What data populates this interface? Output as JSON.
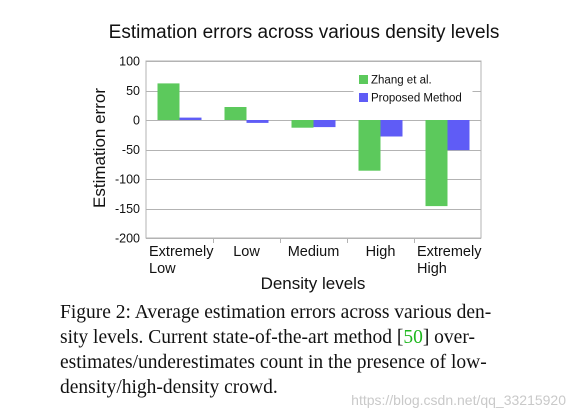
{
  "chart_data": {
    "type": "bar",
    "title": "Estimation errors across various density levels",
    "xlabel": "Density levels",
    "ylabel": "Estimation error",
    "categories": [
      [
        "Extremely",
        "Low"
      ],
      [
        "Low"
      ],
      [
        "Medium"
      ],
      [
        "High"
      ],
      [
        "Extremely",
        "High"
      ]
    ],
    "series": [
      {
        "name": "Zhang et al.",
        "color": "#5cc95c",
        "values": [
          62,
          22,
          -13,
          -86,
          -146
        ]
      },
      {
        "name": "Proposed Method",
        "color": "#5f5cf6",
        "values": [
          4,
          -5,
          -12,
          -28,
          -51
        ]
      }
    ],
    "ylim": [
      -200,
      100
    ],
    "yticks": [
      100,
      50,
      0,
      -50,
      -100,
      -150,
      -200
    ],
    "grid": true,
    "legend_position": "top-right"
  },
  "caption": {
    "lines": [
      {
        "text": "Figure 2:  Average estimation errors across various den-"
      },
      {
        "text": "sity levels.  Current state-of-the-art method [",
        "ref": "50",
        "after": "] over-"
      },
      {
        "text": "estimates/underestimates count in the presence of low-"
      },
      {
        "text": "density/high-density crowd."
      }
    ]
  },
  "watermark": "https://blog.csdn.net/qq_33215920"
}
